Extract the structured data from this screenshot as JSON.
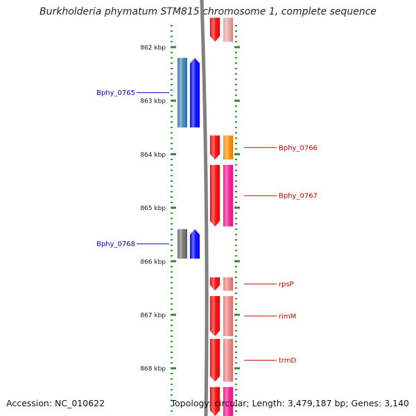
{
  "title": "Burkholderia phymatum STM815 chromosome 1, complete sequence",
  "footer": {
    "accession": "Accession: NC_010622",
    "info": "Topology: circular; Length: 3,479,187 bp; Genes: 3,140"
  },
  "ticks": [
    {
      "label": "862 kbp",
      "kbp": 862
    },
    {
      "label": "863 kbp",
      "kbp": 863
    },
    {
      "label": "864 kbp",
      "kbp": 864
    },
    {
      "label": "865 kbp",
      "kbp": 865
    },
    {
      "label": "866 kbp",
      "kbp": 866
    },
    {
      "label": "867 kbp",
      "kbp": 867
    },
    {
      "label": "868 kbp",
      "kbp": 868
    }
  ],
  "genes": [
    {
      "name": "",
      "strand": "forward",
      "start_kbp": 861.45,
      "end_kbp": 861.9,
      "color": "#e8a0a0"
    },
    {
      "name": "Bphy_0765",
      "strand": "reverse",
      "start_kbp": 862.2,
      "end_kbp": 863.5,
      "color": "#3d7fb8"
    },
    {
      "name": "Bphy_0766",
      "strand": "forward",
      "start_kbp": 863.65,
      "end_kbp": 864.1,
      "color": "#ff8c00"
    },
    {
      "name": "Bphy_0767",
      "strand": "forward",
      "start_kbp": 864.2,
      "end_kbp": 865.35,
      "color": "#ff1493"
    },
    {
      "name": "Bphy_0768",
      "strand": "reverse",
      "start_kbp": 865.4,
      "end_kbp": 865.95,
      "color": "#6e6e6e"
    },
    {
      "name": "rpsP",
      "strand": "forward",
      "start_kbp": 866.3,
      "end_kbp": 866.55,
      "color": "#f08080"
    },
    {
      "name": "rimM",
      "strand": "forward",
      "start_kbp": 866.65,
      "end_kbp": 867.4,
      "color": "#f08080"
    },
    {
      "name": "trmD",
      "strand": "forward",
      "start_kbp": 867.45,
      "end_kbp": 868.25,
      "color": "#f08080"
    },
    {
      "name": "",
      "strand": "forward",
      "start_kbp": 868.35,
      "end_kbp": 868.9,
      "color": "#ff1493"
    }
  ],
  "colors": {
    "forward_strand": "#ff0000",
    "reverse_strand": "#0000ff",
    "forward_label": "#cc0000",
    "reverse_label": "#0000cc",
    "tick": "#2e8b2e",
    "backbone": "#808080"
  }
}
